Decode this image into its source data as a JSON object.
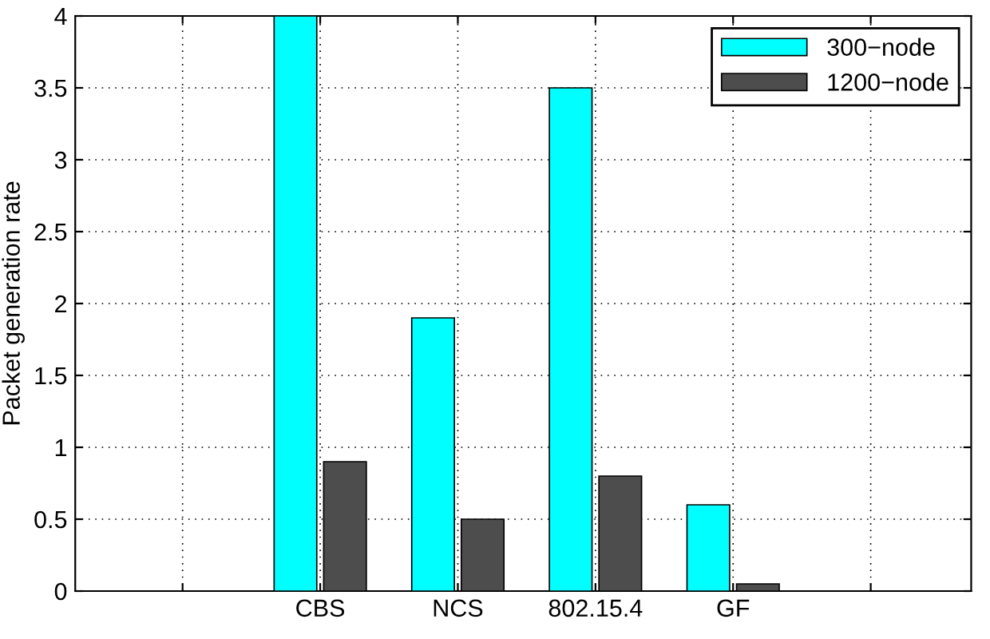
{
  "chart_data": {
    "type": "bar",
    "ylabel": "Packet generation rate",
    "categories": [
      null,
      "CBS",
      "NCS",
      "802.15.4",
      "GF",
      null
    ],
    "series": [
      {
        "name": "300−node",
        "color": "#00ffff",
        "values": [
          null,
          4.0,
          1.9,
          3.5,
          0.6,
          null
        ]
      },
      {
        "name": "1200−node",
        "color": "#4d4d4d",
        "values": [
          null,
          0.9,
          0.5,
          0.8,
          0.05,
          null
        ]
      }
    ],
    "ylim": [
      0,
      4
    ],
    "yticks": [
      0,
      0.5,
      1,
      1.5,
      2,
      2.5,
      3,
      3.5,
      4
    ],
    "grid": true,
    "legend": "top right"
  }
}
